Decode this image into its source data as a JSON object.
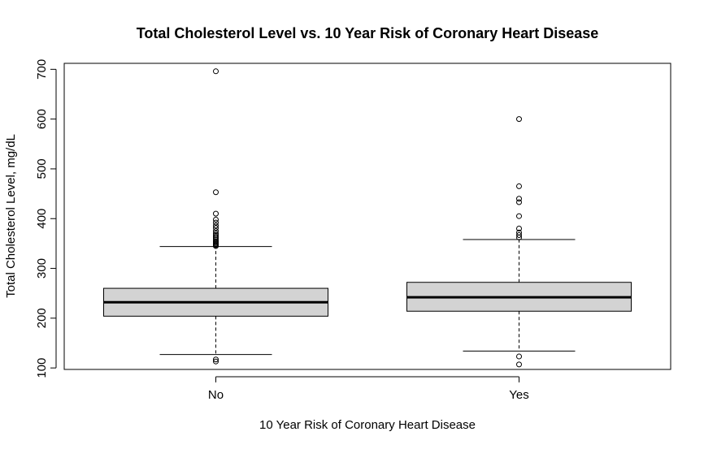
{
  "chart_data": {
    "type": "boxplot",
    "title": "Total Cholesterol Level vs. 10 Year Risk of Coronary Heart Disease",
    "xlabel": "10 Year Risk of Coronary Heart Disease",
    "ylabel": "Total Cholesterol Level, mg/dL",
    "categories": [
      "No",
      "Yes"
    ],
    "ylim": [
      97,
      712
    ],
    "yticks": [
      100,
      200,
      300,
      400,
      500,
      600,
      700
    ],
    "grid": false,
    "box_fill": "#d3d3d3",
    "boxes": [
      {
        "category": "No",
        "whisker_low": 127,
        "q1": 204,
        "median": 232,
        "q3": 260,
        "whisker_high": 344,
        "outliers": [
          113,
          117,
          345,
          347,
          349,
          351,
          353,
          355,
          358,
          361,
          364,
          367,
          370,
          375,
          381,
          386,
          392,
          398,
          410,
          453,
          696
        ]
      },
      {
        "category": "Yes",
        "whisker_low": 134,
        "q1": 214,
        "median": 242,
        "q3": 272,
        "whisker_high": 358,
        "outliers": [
          107,
          123,
          362,
          367,
          372,
          380,
          405,
          433,
          440,
          465,
          600
        ]
      }
    ]
  }
}
